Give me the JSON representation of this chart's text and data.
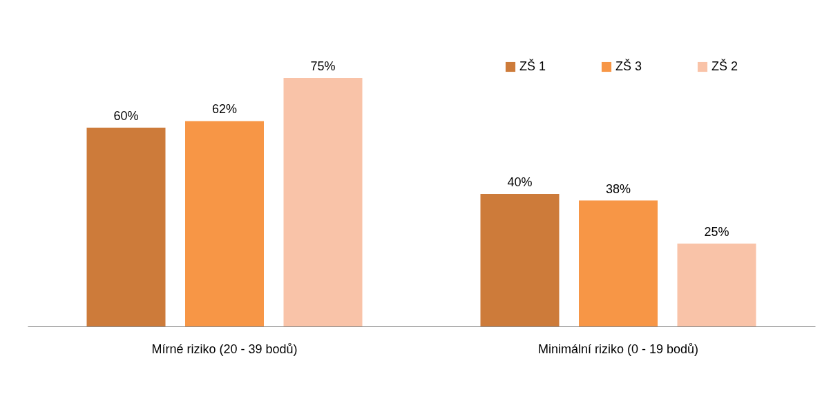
{
  "chart_data": {
    "type": "bar",
    "categories": [
      "Mírné riziko (20 - 39 bodů)",
      "Minimální riziko (0 - 19 bodů)"
    ],
    "series": [
      {
        "name": "ZŠ 1",
        "color": "#cd7b3a",
        "values": [
          60,
          40
        ],
        "value_labels": [
          "60%",
          "40%"
        ]
      },
      {
        "name": "ZŠ 3",
        "color": "#f79646",
        "values": [
          62,
          38
        ],
        "value_labels": [
          "62%",
          "38%"
        ]
      },
      {
        "name": "ZŠ 2",
        "color": "#f9c3a8",
        "values": [
          75,
          25
        ],
        "value_labels": [
          "75%",
          "25%"
        ]
      }
    ],
    "legend": "top right",
    "tick_labels": "x",
    "grid": false
  }
}
